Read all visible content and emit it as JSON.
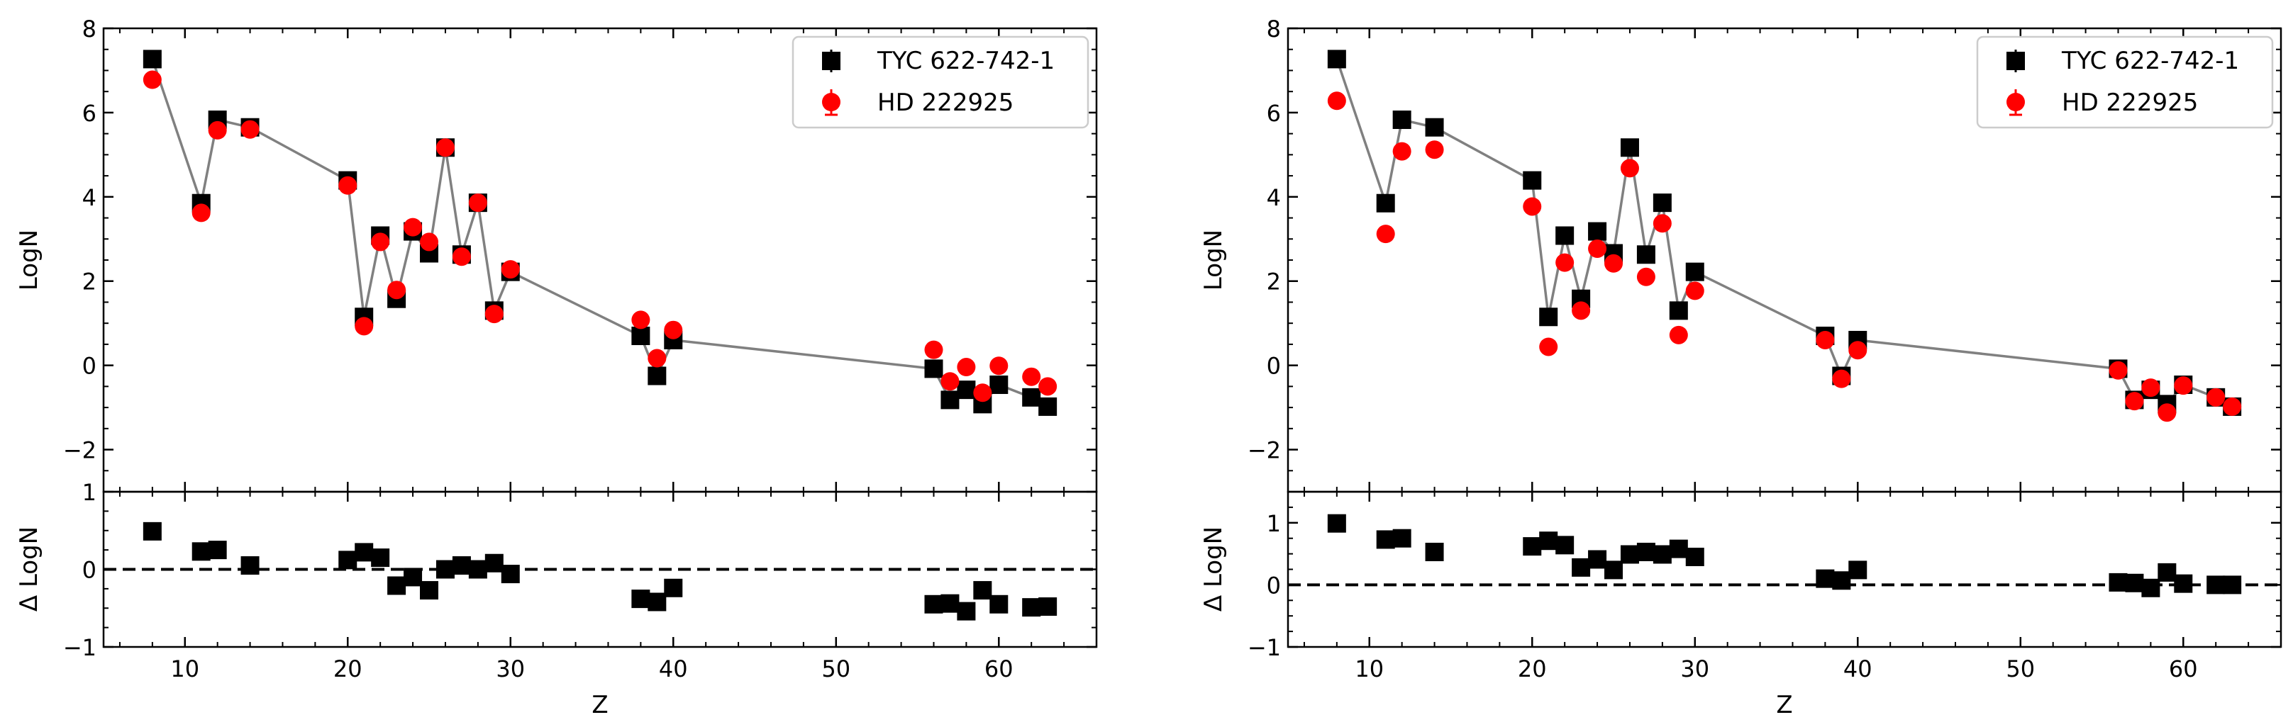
{
  "chart_data": [
    {
      "type": "scatter",
      "panel": "left-main",
      "xlabel": "",
      "ylabel": "LogN",
      "xlim": [
        5,
        66
      ],
      "ylim": [
        -3,
        8
      ],
      "yticks": [
        -2,
        0,
        2,
        4,
        6,
        8
      ],
      "ytick_labels": [
        "−2",
        "0",
        "2",
        "4",
        "6",
        "8"
      ],
      "legend_position": "top-right",
      "series": [
        {
          "name": "TYC 622-742-1",
          "marker": "square",
          "color": "#000000",
          "connected": true,
          "x": [
            8,
            11,
            12,
            14,
            20,
            21,
            22,
            23,
            24,
            25,
            26,
            27,
            28,
            29,
            30,
            38,
            39,
            40,
            56,
            57,
            58,
            59,
            60,
            62,
            63
          ],
          "y": [
            7.27,
            3.85,
            5.83,
            5.65,
            4.39,
            1.15,
            3.08,
            1.58,
            3.18,
            2.66,
            5.17,
            2.63,
            3.86,
            1.3,
            2.22,
            0.7,
            -0.25,
            0.6,
            -0.08,
            -0.82,
            -0.58,
            -0.92,
            -0.46,
            -0.76,
            -0.98
          ]
        },
        {
          "name": "HD 222925",
          "marker": "circle",
          "color": "#ff0000",
          "connected": false,
          "x": [
            8,
            11,
            12,
            14,
            20,
            21,
            22,
            23,
            24,
            25,
            26,
            27,
            28,
            29,
            30,
            38,
            39,
            40,
            56,
            57,
            58,
            59,
            60,
            62,
            63
          ],
          "y": [
            6.78,
            3.62,
            5.58,
            5.6,
            4.27,
            0.93,
            2.93,
            1.79,
            3.28,
            2.93,
            5.17,
            2.58,
            3.86,
            1.22,
            2.28,
            1.08,
            0.17,
            0.84,
            0.37,
            -0.38,
            -0.04,
            -0.65,
            -0.01,
            -0.27,
            -0.5
          ]
        }
      ]
    },
    {
      "type": "scatter",
      "panel": "left-residual",
      "xlabel": "Z",
      "ylabel": "Δ LogN",
      "xlim": [
        5,
        66
      ],
      "ylim": [
        -1,
        1
      ],
      "xticks": [
        10,
        20,
        30,
        40,
        50,
        60
      ],
      "xtick_labels": [
        "10",
        "20",
        "30",
        "40",
        "50",
        "60"
      ],
      "yticks": [
        -1,
        0,
        1
      ],
      "ytick_labels": [
        "−1",
        "0",
        "1"
      ],
      "reference_line": 0,
      "series": [
        {
          "name": "Δ LogN",
          "marker": "square",
          "color": "#000000",
          "x": [
            8,
            11,
            12,
            14,
            20,
            21,
            22,
            23,
            24,
            25,
            26,
            27,
            28,
            29,
            30,
            38,
            39,
            40,
            56,
            57,
            58,
            59,
            60,
            62,
            63
          ],
          "y": [
            0.49,
            0.23,
            0.25,
            0.05,
            0.12,
            0.22,
            0.15,
            -0.21,
            -0.1,
            -0.27,
            0.0,
            0.05,
            0.0,
            0.08,
            -0.06,
            -0.38,
            -0.42,
            -0.24,
            -0.45,
            -0.44,
            -0.54,
            -0.27,
            -0.45,
            -0.49,
            -0.48
          ]
        }
      ]
    },
    {
      "type": "scatter",
      "panel": "right-main",
      "xlabel": "",
      "ylabel": "LogN",
      "xlim": [
        5,
        66
      ],
      "ylim": [
        -3,
        8
      ],
      "yticks": [
        -2,
        0,
        2,
        4,
        6,
        8
      ],
      "ytick_labels": [
        "−2",
        "0",
        "2",
        "4",
        "6",
        "8"
      ],
      "legend_position": "top-right",
      "series": [
        {
          "name": "TYC 622-742-1",
          "marker": "square",
          "color": "#000000",
          "connected": true,
          "x": [
            8,
            11,
            12,
            14,
            20,
            21,
            22,
            23,
            24,
            25,
            26,
            27,
            28,
            29,
            30,
            38,
            39,
            40,
            56,
            57,
            58,
            59,
            60,
            62,
            63
          ],
          "y": [
            7.27,
            3.85,
            5.83,
            5.65,
            4.39,
            1.15,
            3.08,
            1.58,
            3.18,
            2.66,
            5.17,
            2.63,
            3.86,
            1.3,
            2.22,
            0.7,
            -0.25,
            0.6,
            -0.08,
            -0.82,
            -0.58,
            -0.92,
            -0.46,
            -0.76,
            -0.98
          ]
        },
        {
          "name": "HD 222925",
          "marker": "circle",
          "color": "#ff0000",
          "connected": false,
          "x": [
            8,
            11,
            12,
            14,
            20,
            21,
            22,
            23,
            24,
            25,
            26,
            27,
            28,
            29,
            30,
            38,
            39,
            40,
            56,
            57,
            58,
            59,
            60,
            62,
            63
          ],
          "y": [
            6.28,
            3.12,
            5.08,
            5.12,
            3.77,
            0.44,
            2.44,
            1.3,
            2.77,
            2.42,
            4.68,
            2.1,
            3.37,
            0.72,
            1.77,
            0.6,
            -0.32,
            0.36,
            -0.12,
            -0.85,
            -0.53,
            -1.12,
            -0.48,
            -0.76,
            -0.98
          ]
        }
      ]
    },
    {
      "type": "scatter",
      "panel": "right-residual",
      "xlabel": "Z",
      "ylabel": "Δ LogN",
      "xlim": [
        5,
        66
      ],
      "ylim": [
        -1,
        1.5
      ],
      "xticks": [
        10,
        20,
        30,
        40,
        50,
        60
      ],
      "xtick_labels": [
        "10",
        "20",
        "30",
        "40",
        "50",
        "60"
      ],
      "yticks": [
        -1,
        0,
        1
      ],
      "ytick_labels": [
        "−1",
        "0",
        "1"
      ],
      "reference_line": 0,
      "series": [
        {
          "name": "Δ LogN",
          "marker": "square",
          "color": "#000000",
          "x": [
            8,
            11,
            12,
            14,
            20,
            21,
            22,
            23,
            24,
            25,
            26,
            27,
            28,
            29,
            30,
            38,
            39,
            40,
            56,
            57,
            58,
            59,
            60,
            62,
            63
          ],
          "y": [
            0.99,
            0.73,
            0.75,
            0.53,
            0.62,
            0.71,
            0.64,
            0.28,
            0.41,
            0.24,
            0.49,
            0.53,
            0.49,
            0.58,
            0.45,
            0.1,
            0.07,
            0.24,
            0.04,
            0.03,
            -0.05,
            0.2,
            0.02,
            0.0,
            0.0
          ]
        }
      ]
    }
  ]
}
